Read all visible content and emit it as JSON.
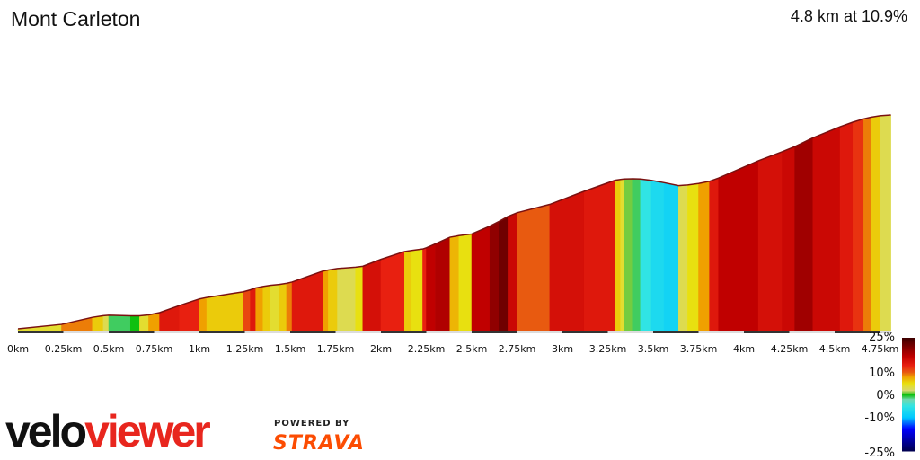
{
  "chart_data": {
    "type": "area",
    "title": "Mont Carleton",
    "summary": "4.8 km at 10.9%",
    "x_unit": "km",
    "xlim": [
      0,
      4.81
    ],
    "x_ticks": [
      "0km",
      "0.25km",
      "0.5km",
      "0.75km",
      "1km",
      "1.25km",
      "1.5km",
      "1.75km",
      "2km",
      "2.25km",
      "2.5km",
      "2.75km",
      "3km",
      "3.25km",
      "3.5km",
      "3.75km",
      "4km",
      "4.25km",
      "4.5km",
      "4.75km"
    ],
    "segments": [
      [
        0.24,
        4
      ],
      [
        0.41,
        9
      ],
      [
        0.47,
        6
      ],
      [
        0.5,
        3
      ],
      [
        0.62,
        -1
      ],
      [
        0.67,
        0
      ],
      [
        0.72,
        4
      ],
      [
        0.78,
        8
      ],
      [
        0.89,
        14
      ],
      [
        1.0,
        13
      ],
      [
        1.04,
        8
      ],
      [
        1.24,
        6
      ],
      [
        1.28,
        11
      ],
      [
        1.31,
        14
      ],
      [
        1.35,
        8
      ],
      [
        1.39,
        6
      ],
      [
        1.44,
        4
      ],
      [
        1.48,
        6
      ],
      [
        1.51,
        9
      ],
      [
        1.68,
        14
      ],
      [
        1.71,
        8
      ],
      [
        1.76,
        6
      ],
      [
        1.86,
        3
      ],
      [
        1.9,
        5
      ],
      [
        2.0,
        15
      ],
      [
        2.13,
        13
      ],
      [
        2.17,
        6
      ],
      [
        2.23,
        5
      ],
      [
        2.25,
        13
      ],
      [
        2.3,
        17
      ],
      [
        2.38,
        18
      ],
      [
        2.43,
        7
      ],
      [
        2.5,
        5
      ],
      [
        2.6,
        17
      ],
      [
        2.65,
        20
      ],
      [
        2.7,
        22
      ],
      [
        2.75,
        16
      ],
      [
        2.93,
        10
      ],
      [
        3.12,
        15
      ],
      [
        3.29,
        14
      ],
      [
        3.32,
        6
      ],
      [
        3.34,
        4
      ],
      [
        3.39,
        1
      ],
      [
        3.43,
        -1
      ],
      [
        3.49,
        -5
      ],
      [
        3.56,
        -7
      ],
      [
        3.64,
        -8
      ],
      [
        3.69,
        3
      ],
      [
        3.75,
        5
      ],
      [
        3.81,
        8
      ],
      [
        3.86,
        14
      ],
      [
        4.08,
        17
      ],
      [
        4.21,
        15
      ],
      [
        4.28,
        16
      ],
      [
        4.38,
        19
      ],
      [
        4.53,
        16
      ],
      [
        4.6,
        14
      ],
      [
        4.66,
        12
      ],
      [
        4.7,
        9
      ],
      [
        4.75,
        6
      ],
      [
        4.81,
        3
      ]
    ],
    "legend": {
      "labels": [
        "25%",
        "10%",
        "0%",
        "-10%",
        "-25%"
      ],
      "values": [
        25,
        10,
        0,
        -10,
        -25
      ]
    },
    "color_scale": [
      [
        -25,
        "#00004a"
      ],
      [
        -15,
        "#0000ff"
      ],
      [
        -10,
        "#00c8ff"
      ],
      [
        -5,
        "#30e4e4"
      ],
      [
        -2,
        "#70d8b0"
      ],
      [
        0,
        "#10c010"
      ],
      [
        2,
        "#d8d870"
      ],
      [
        5,
        "#e8e010"
      ],
      [
        8,
        "#f0a000"
      ],
      [
        10,
        "#e85a10"
      ],
      [
        13,
        "#e82010"
      ],
      [
        17,
        "#c00000"
      ],
      [
        25,
        "#400000"
      ]
    ]
  },
  "branding": {
    "logo_left": "velo",
    "logo_right": "viewer",
    "powered": "POWERED BY",
    "strava": "STRAVA"
  }
}
